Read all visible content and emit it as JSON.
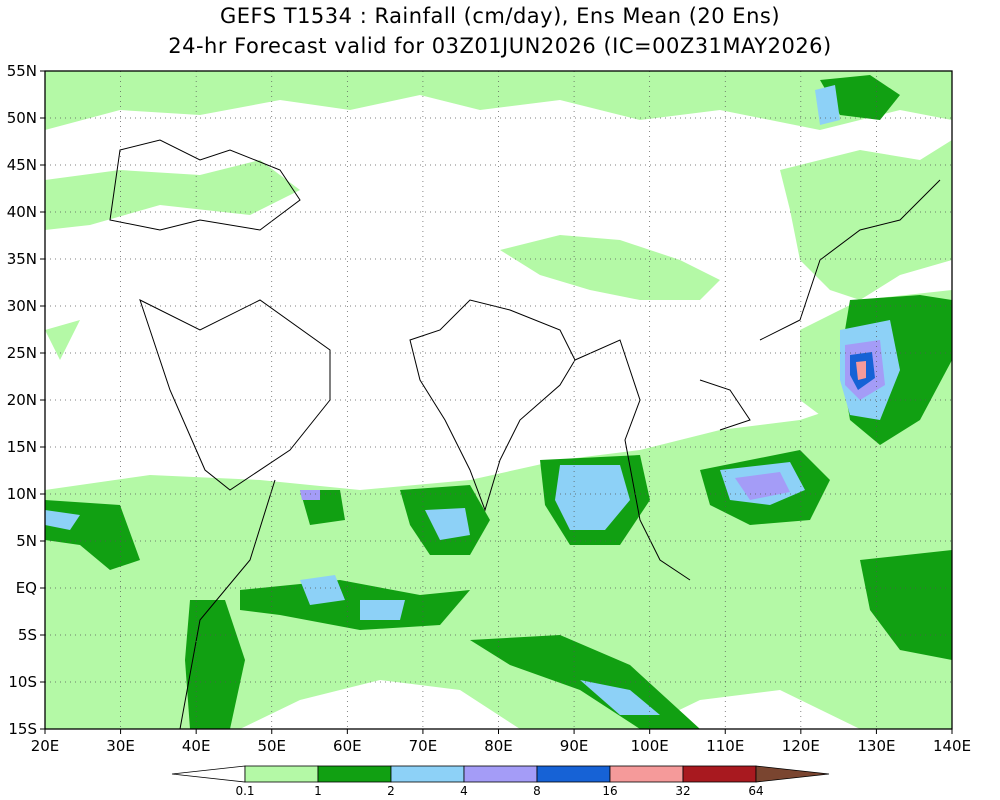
{
  "title": {
    "line1": "GEFS T1534 : Rainfall (cm/day), Ens Mean (20 Ens)",
    "line2": "24-hr Forecast valid for 03Z01JUN2026 (IC=00Z31MAY2026)"
  },
  "map": {
    "lon_range": [
      20,
      140
    ],
    "lat_range": [
      -15,
      55
    ],
    "x_ticks": [
      "20E",
      "30E",
      "40E",
      "50E",
      "60E",
      "70E",
      "80E",
      "90E",
      "100E",
      "110E",
      "120E",
      "130E",
      "140E"
    ],
    "y_ticks": [
      "55N",
      "50N",
      "45N",
      "40N",
      "35N",
      "30N",
      "25N",
      "20N",
      "15N",
      "10N",
      "5N",
      "EQ",
      "5S",
      "10S",
      "15S"
    ],
    "grid": "dotted"
  },
  "colorbar": {
    "levels": [
      "0.1",
      "1",
      "2",
      "4",
      "8",
      "16",
      "32",
      "64"
    ],
    "colors": [
      "#b4f9a6",
      "#11a012",
      "#8dd1f7",
      "#a49cf7",
      "#1662d6",
      "#f59a9a",
      "#a8191f",
      "#7a4530"
    ],
    "low_color": "#ffffff"
  },
  "colors": {
    "c1": "#b4f9a6",
    "c2": "#11a012",
    "c3": "#8dd1f7",
    "c4": "#a49cf7",
    "c5": "#1662d6",
    "c6": "#f59a9a"
  }
}
